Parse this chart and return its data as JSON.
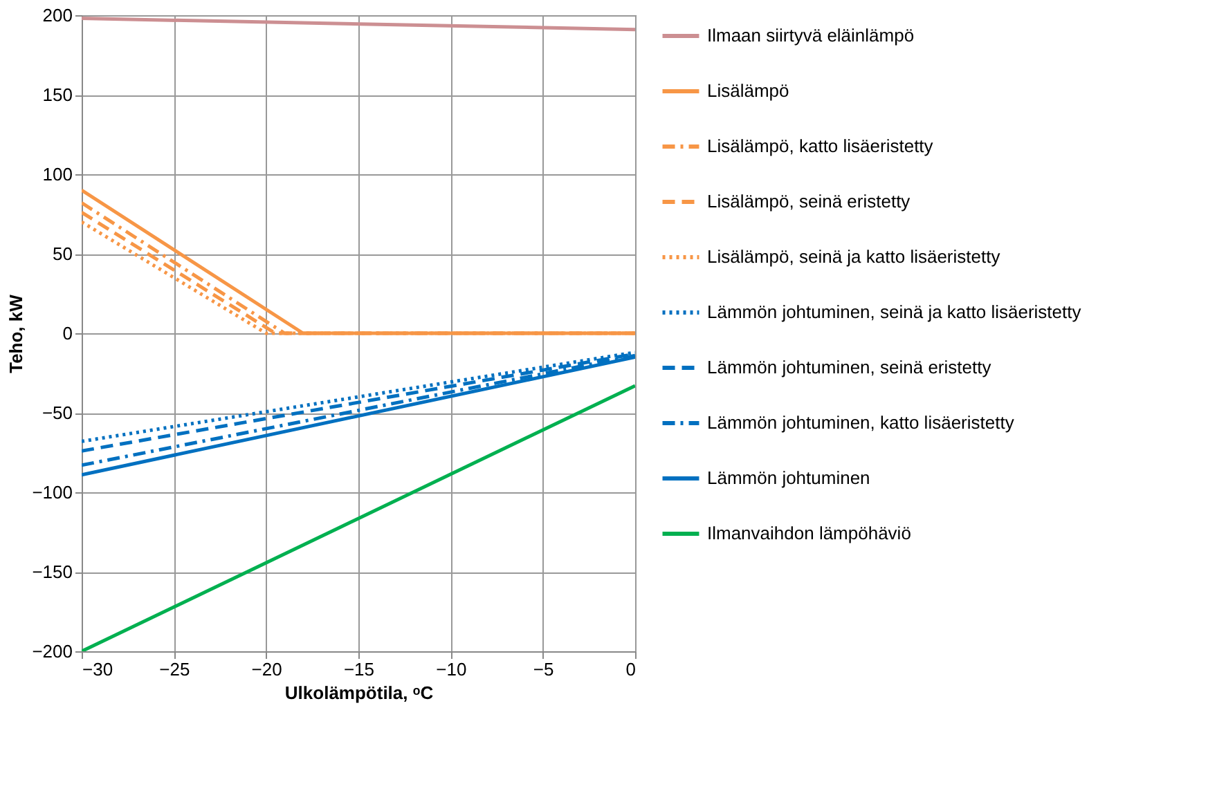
{
  "chart_data": {
    "type": "line",
    "xlabel": "Ulkolämpötila, ᵒC",
    "ylabel": "Teho, kW",
    "xlim": [
      -30,
      0
    ],
    "xticks": [
      -30,
      -25,
      -20,
      -15,
      -10,
      -5,
      0
    ],
    "ylim": [
      -200,
      200
    ],
    "yticks": [
      -200,
      -150,
      -100,
      -50,
      0,
      50,
      100,
      150,
      200
    ],
    "grid": true,
    "legend": "right",
    "marker": "none",
    "series": [
      {
        "name": "Ilmaan siirtyvä eläinlämpö",
        "color": "#cc8f92",
        "line_style": "solid",
        "x": [
          -30,
          0
        ],
        "values": [
          198,
          191
        ]
      },
      {
        "name": "Lisälämpö",
        "color": "#f79646",
        "line_style": "solid",
        "x": [
          -30,
          -18,
          0
        ],
        "values": [
          90,
          0,
          0
        ]
      },
      {
        "name": "Lisälämpö,  katto lisäeristetty",
        "color": "#f79646",
        "line_style": "dashdot",
        "x": [
          -30,
          -19,
          0
        ],
        "values": [
          82,
          0,
          0
        ]
      },
      {
        "name": "Lisälämpö, seinä eristetty",
        "color": "#f79646",
        "line_style": "dashed",
        "x": [
          -30,
          -19.5,
          0
        ],
        "values": [
          76,
          0,
          0
        ]
      },
      {
        "name": "Lisälämpö, seinä ja katto lisäeristetty",
        "color": "#f79646",
        "line_style": "dotted",
        "x": [
          -30,
          -20,
          0
        ],
        "values": [
          70,
          0,
          0
        ]
      },
      {
        "name": "Lämmön johtuminen, seinä ja katto lisäeristetty",
        "color": "#0070c0",
        "line_style": "dotted",
        "x": [
          -30,
          0
        ],
        "values": [
          -68,
          -12
        ]
      },
      {
        "name": "Lämmön johtuminen, seinä eristetty",
        "color": "#0070c0",
        "line_style": "dashed",
        "x": [
          -30,
          0
        ],
        "values": [
          -74,
          -13
        ]
      },
      {
        "name": "Lämmön johtuminen, katto lisäeristetty",
        "color": "#0070c0",
        "line_style": "dashdot",
        "x": [
          -30,
          0
        ],
        "values": [
          -83,
          -14
        ]
      },
      {
        "name": "Lämmön johtuminen",
        "color": "#0070c0",
        "line_style": "solid",
        "x": [
          -30,
          0
        ],
        "values": [
          -89,
          -15
        ]
      },
      {
        "name": "Ilmanvaihdon lämpöhäviö",
        "color": "#00b050",
        "line_style": "solid",
        "x": [
          -30,
          0
        ],
        "values": [
          -200,
          -33
        ]
      }
    ]
  }
}
